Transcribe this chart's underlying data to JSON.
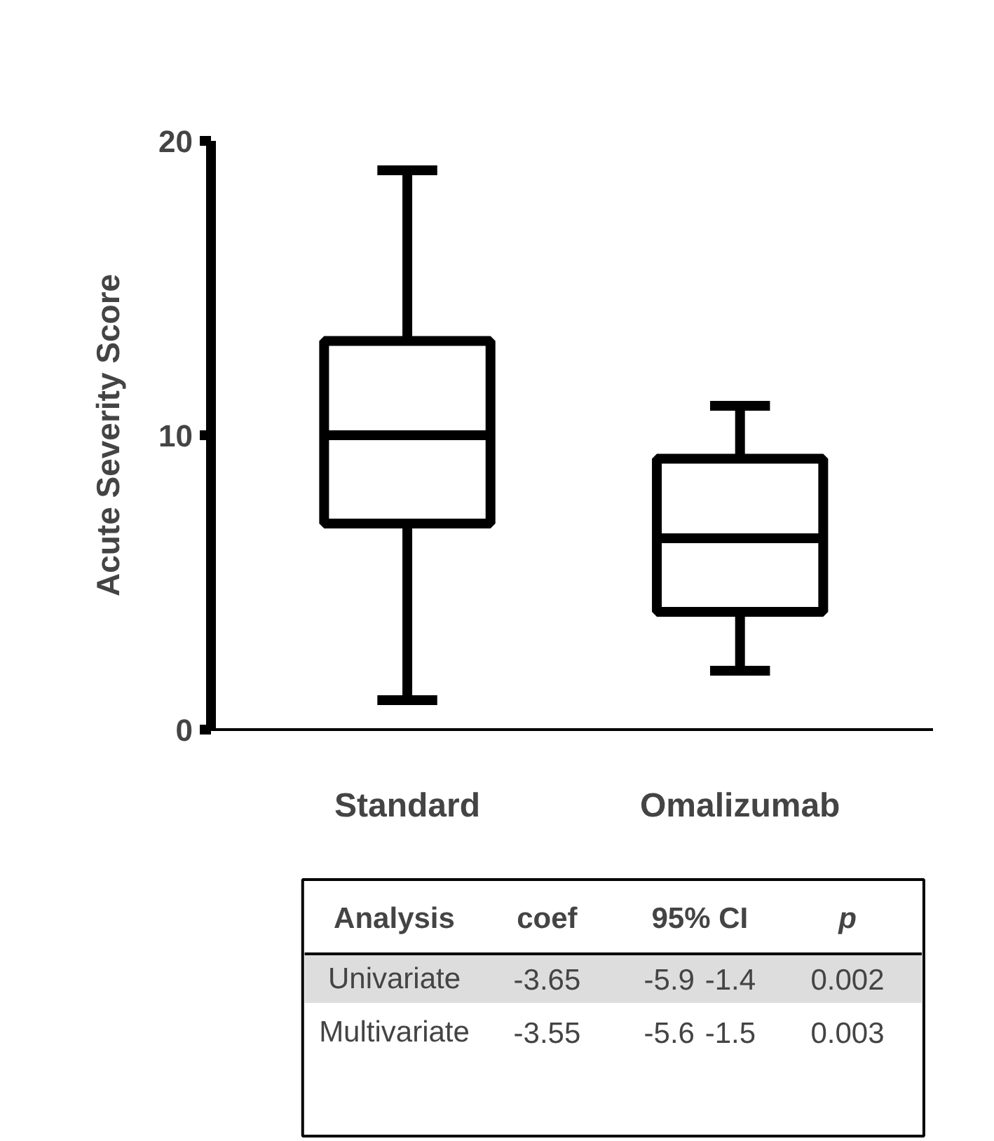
{
  "chart_data": {
    "type": "box",
    "ylabel": "Acute Severity Score",
    "categories": [
      "Standard",
      "Omalizumab"
    ],
    "boxes": [
      {
        "low": 1,
        "q1": 7,
        "median": 10,
        "q3": 13.2,
        "high": 19
      },
      {
        "low": 2,
        "q1": 4,
        "median": 6.5,
        "q3": 9.2,
        "high": 11
      }
    ],
    "ylim": [
      0,
      20
    ],
    "yticks": [
      0,
      10,
      20
    ],
    "annotations": [
      "Analysis",
      "coef",
      "95% CI",
      "p",
      "Univariate",
      "-3.65",
      "-5.9",
      "-1.4",
      "0.002",
      "Multivariate",
      "-3.55",
      "-5.6",
      "-1.5",
      "0.003"
    ]
  }
}
